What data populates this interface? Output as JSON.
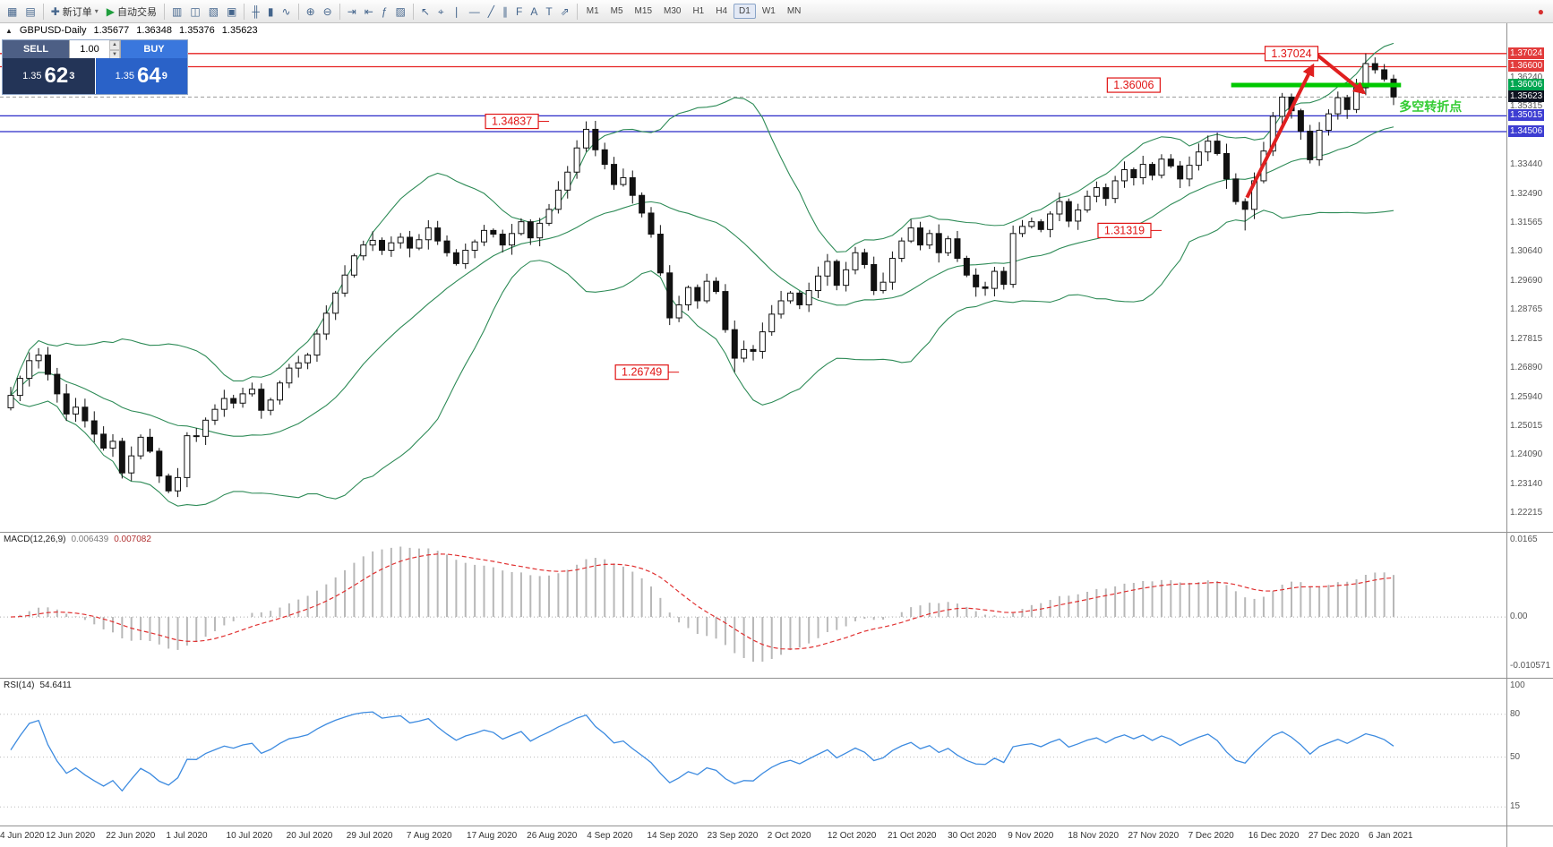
{
  "toolbar": {
    "caret_glyph": "▾",
    "groups": [
      {
        "name": "windows",
        "items": [
          {
            "name": "new-chart",
            "glyph": "▦"
          },
          {
            "name": "profiles",
            "glyph": "▤"
          }
        ]
      },
      {
        "name": "trading",
        "items": [
          {
            "name": "new-order",
            "glyph": "✚",
            "label": "新订单",
            "caret": true
          },
          {
            "name": "autotrading",
            "glyph": "▶",
            "label": "自动交易",
            "green": true
          }
        ]
      },
      {
        "name": "panels",
        "items": [
          {
            "name": "market-watch",
            "glyph": "▥"
          },
          {
            "name": "data-window",
            "glyph": "◫"
          },
          {
            "name": "navigator",
            "glyph": "▧"
          },
          {
            "name": "terminal",
            "glyph": "▣"
          }
        ]
      },
      {
        "name": "chart-type",
        "items": [
          {
            "name": "bar-chart",
            "glyph": "╫"
          },
          {
            "name": "candlestick-chart",
            "glyph": "▮"
          },
          {
            "name": "line-chart",
            "glyph": "∿"
          }
        ]
      },
      {
        "name": "zoom",
        "items": [
          {
            "name": "zoom-in",
            "glyph": "⊕"
          },
          {
            "name": "zoom-out",
            "glyph": "⊖"
          }
        ]
      },
      {
        "name": "chart-control",
        "items": [
          {
            "name": "auto-scroll",
            "glyph": "⇥"
          },
          {
            "name": "chart-shift",
            "glyph": "⇤"
          },
          {
            "name": "indicators",
            "glyph": "ƒ"
          },
          {
            "name": "templates",
            "glyph": "▨"
          }
        ]
      },
      {
        "name": "objects",
        "items": [
          {
            "name": "cursor",
            "glyph": "↖"
          },
          {
            "name": "crosshair",
            "glyph": "⌖"
          },
          {
            "name": "vertical-line",
            "glyph": "❘"
          },
          {
            "name": "horizontal-line",
            "glyph": "―"
          },
          {
            "name": "trendline",
            "glyph": "╱"
          },
          {
            "name": "channel",
            "glyph": "∥"
          },
          {
            "name": "fibonacci",
            "glyph": "F"
          },
          {
            "name": "text",
            "glyph": "A"
          },
          {
            "name": "text-label",
            "glyph": "T"
          },
          {
            "name": "arrows",
            "glyph": "⇗"
          }
        ]
      }
    ],
    "timeframes": [
      {
        "label": "M1"
      },
      {
        "label": "M5"
      },
      {
        "label": "M15"
      },
      {
        "label": "M30"
      },
      {
        "label": "H1"
      },
      {
        "label": "H4"
      },
      {
        "label": "D1",
        "active": true
      },
      {
        "label": "W1"
      },
      {
        "label": "MN"
      }
    ],
    "alert_badge": {
      "glyph": "●",
      "color": "#d63030"
    }
  },
  "symbol_line": {
    "collapse_glyph": "▲",
    "symbol": "GBPUSD-Daily",
    "open": "1.35677",
    "high": "1.36348",
    "low": "1.35376",
    "close": "1.35623"
  },
  "trade_panel": {
    "sell_label": "SELL",
    "buy_label": "BUY",
    "volume": "1.00",
    "spin_up": "▲",
    "spin_down": "▼",
    "bid": {
      "prefix": "1.35",
      "main": "62",
      "sup": "3"
    },
    "ask": {
      "prefix": "1.35",
      "main": "64",
      "sup": "9"
    },
    "colors": {
      "sell_light": "#4d5f85",
      "sell_dark": "#233457",
      "buy_light": "#3a77dd",
      "buy_dark": "#2a62c8"
    }
  },
  "price_axis": {
    "labels": [
      {
        "text": "1.37024",
        "price": 1.37024,
        "style": "red"
      },
      {
        "text": "1.36600",
        "price": 1.366,
        "style": "red"
      },
      {
        "text": "1.36240",
        "price": 1.3624,
        "style": "plain"
      },
      {
        "text": "1.36006",
        "price": 1.36006,
        "style": "green"
      },
      {
        "text": "1.35623",
        "price": 1.35623,
        "style": "dark"
      },
      {
        "text": "1.35315",
        "price": 1.35315,
        "style": "plain"
      },
      {
        "text": "1.35015",
        "price": 1.35015,
        "style": "blue"
      },
      {
        "text": "1.34506",
        "price": 1.34506,
        "style": "blue"
      },
      {
        "text": "1.33440",
        "price": 1.3344,
        "style": "plain"
      },
      {
        "text": "1.32490",
        "price": 1.3249,
        "style": "plain"
      },
      {
        "text": "1.31565",
        "price": 1.31565,
        "style": "plain"
      },
      {
        "text": "1.30640",
        "price": 1.3064,
        "style": "plain"
      },
      {
        "text": "1.29690",
        "price": 1.2969,
        "style": "plain"
      },
      {
        "text": "1.28765",
        "price": 1.28765,
        "style": "plain"
      },
      {
        "text": "1.27815",
        "price": 1.27815,
        "style": "plain"
      },
      {
        "text": "1.26890",
        "price": 1.2689,
        "style": "plain"
      },
      {
        "text": "1.25940",
        "price": 1.2594,
        "style": "plain"
      },
      {
        "text": "1.25015",
        "price": 1.25015,
        "style": "plain"
      },
      {
        "text": "1.24090",
        "price": 1.2409,
        "style": "plain"
      },
      {
        "text": "1.23140",
        "price": 1.2314,
        "style": "plain"
      },
      {
        "text": "1.22215",
        "price": 1.22215,
        "style": "plain"
      }
    ]
  },
  "levels": [
    {
      "price": 1.37024,
      "color": "#e62222",
      "width": 1.3
    },
    {
      "price": 1.366,
      "color": "#e62222",
      "width": 1.2
    },
    {
      "price": 1.35015,
      "color": "#2a2ac8",
      "width": 1.2
    },
    {
      "price": 1.34506,
      "color": "#2a2ac8",
      "width": 1.2
    },
    {
      "price": 1.35623,
      "color": "#9a9a9a",
      "width": 1,
      "dash": "4 3"
    }
  ],
  "objects": {
    "arrow_color": "#e02020",
    "trend_segment": {
      "price": 1.36006,
      "from_idx": 131.5,
      "to_idx": 149.8,
      "color": "#00c800",
      "width": 5
    },
    "arrows": [
      {
        "from": [
          133.2,
          1.3238
        ],
        "to": [
          140.3,
          1.3663
        ]
      },
      {
        "from": [
          140.8,
          1.3697
        ],
        "to": [
          145.8,
          1.3576
        ]
      }
    ],
    "annotations": [
      {
        "text": "1.34837",
        "idx": 54,
        "price": 1.34837,
        "target_idx": 62,
        "target_price": 1.34837
      },
      {
        "text": "1.26749",
        "idx": 68,
        "price": 1.26749,
        "target_idx": 78,
        "target_price": 1.26749
      },
      {
        "text": "1.31319",
        "idx": 120,
        "price": 1.31319,
        "target_idx": 133,
        "target_price": 1.31319
      },
      {
        "text": "1.36006",
        "idx": 121,
        "price": 1.36006
      },
      {
        "text": "1.37024",
        "idx": 138,
        "price": 1.37024,
        "target_idx": 146,
        "target_price": 1.37024
      }
    ],
    "note": {
      "text": "多空转折点",
      "color": "#33cc33",
      "idx": 149.6,
      "price": 1.3517
    }
  },
  "chart_data": {
    "type": "candlestick",
    "symbol": "GBPUSD",
    "timeframe": "Daily",
    "ylim": [
      1.216,
      1.38
    ],
    "closes": [
      1.26,
      1.2655,
      1.2712,
      1.273,
      1.2668,
      1.2605,
      1.254,
      1.2562,
      1.2518,
      1.2475,
      1.243,
      1.2452,
      1.235,
      1.2405,
      1.2465,
      1.242,
      1.234,
      1.2292,
      1.2335,
      1.247,
      1.2468,
      1.252,
      1.2555,
      1.259,
      1.2575,
      1.2605,
      1.262,
      1.2552,
      1.2585,
      1.264,
      1.2688,
      1.2705,
      1.273,
      1.2798,
      1.2865,
      1.293,
      1.2988,
      1.305,
      1.3085,
      1.31,
      1.3068,
      1.3092,
      1.311,
      1.3075,
      1.3102,
      1.314,
      1.3098,
      1.306,
      1.3025,
      1.3068,
      1.3095,
      1.3132,
      1.312,
      1.3085,
      1.3122,
      1.316,
      1.3108,
      1.3155,
      1.32,
      1.3262,
      1.332,
      1.3398,
      1.3458,
      1.3392,
      1.3345,
      1.328,
      1.3302,
      1.3245,
      1.3188,
      1.312,
      1.2995,
      1.285,
      1.2892,
      1.2948,
      1.2905,
      1.2968,
      1.2935,
      1.2812,
      1.272,
      1.2748,
      1.2742,
      1.2805,
      1.2862,
      1.2905,
      1.293,
      1.2892,
      1.2938,
      1.2985,
      1.3032,
      1.2955,
      1.3005,
      1.306,
      1.3022,
      1.2938,
      1.2965,
      1.3042,
      1.3098,
      1.314,
      1.3085,
      1.3122,
      1.306,
      1.3105,
      1.3042,
      1.2988,
      1.295,
      1.2945,
      1.3,
      1.2958,
      1.3122,
      1.3145,
      1.316,
      1.3135,
      1.3185,
      1.3225,
      1.3162,
      1.3198,
      1.3242,
      1.327,
      1.3235,
      1.3292,
      1.3328,
      1.3302,
      1.3345,
      1.331,
      1.3362,
      1.334,
      1.3298,
      1.3342,
      1.3385,
      1.342,
      1.338,
      1.3298,
      1.3225,
      1.32,
      1.3292,
      1.3388,
      1.35,
      1.3562,
      1.3518,
      1.3452,
      1.336,
      1.3455,
      1.3508,
      1.356,
      1.3522,
      1.3592,
      1.367,
      1.365,
      1.362,
      1.35623
    ],
    "extremes": {
      "62": {
        "h": 1.34837
      },
      "78": {
        "l": 1.26749
      },
      "133": {
        "l": 1.31319
      },
      "146": {
        "h": 1.37024
      },
      "147": {
        "h": 1.369
      }
    },
    "indicators": {
      "bollinger": {
        "period": 20,
        "deviation": 2,
        "color": "#2e8b57"
      }
    }
  },
  "macd_panel": {
    "label": "MACD(12,26,9)",
    "value_main": "0.006439",
    "value_signal": "0.007082",
    "axis": [
      {
        "text": "0.0165",
        "v": 0.0165
      },
      {
        "text": "0.00",
        "v": 0
      },
      {
        "text": "-0.010571",
        "v": -0.010571
      }
    ],
    "range": [
      -0.013,
      0.018
    ],
    "bar_color": "#b8b8b8",
    "signal_color": "#e03030"
  },
  "rsi_panel": {
    "label": "RSI(14)",
    "value": "54.6411",
    "axis": [
      {
        "text": "100",
        "v": 100
      },
      {
        "text": "80",
        "v": 80
      },
      {
        "text": "50",
        "v": 50
      },
      {
        "text": "15",
        "v": 15
      }
    ],
    "range": [
      2,
      105
    ],
    "levels": [
      80,
      50,
      15
    ],
    "line_color": "#3d8be0"
  },
  "time_axis": {
    "dates": [
      "4 Jun 2020",
      "12 Jun 2020",
      "22 Jun 2020",
      "1 Jul 2020",
      "10 Jul 2020",
      "20 Jul 2020",
      "29 Jul 2020",
      "7 Aug 2020",
      "17 Aug 2020",
      "26 Aug 2020",
      "4 Sep 2020",
      "14 Sep 2020",
      "23 Sep 2020",
      "2 Oct 2020",
      "12 Oct 2020",
      "21 Oct 2020",
      "30 Oct 2020",
      "9 Nov 2020",
      "18 Nov 2020",
      "27 Nov 2020",
      "7 Dec 2020",
      "16 Dec 2020",
      "27 Dec 2020",
      "6 Jan 2021"
    ]
  }
}
